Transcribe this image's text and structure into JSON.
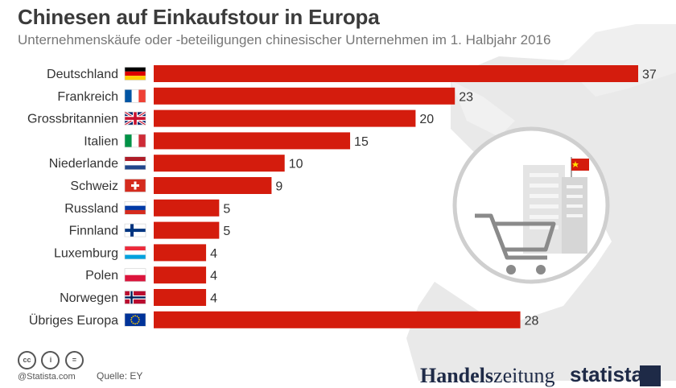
{
  "header": {
    "title": "Chinesen auf Einkaufstour in Europa",
    "subtitle": "Unternehmenskäufe oder -beteiligungen chinesischer Unternehmen im 1. Halbjahr 2016"
  },
  "chart_data": {
    "type": "bar",
    "orientation": "horizontal",
    "categories": [
      "Deutschland",
      "Frankreich",
      "Grossbritannien",
      "Italien",
      "Niederlande",
      "Schweiz",
      "Russland",
      "Finnland",
      "Luxemburg",
      "Polen",
      "Norwegen",
      "Übriges Europa"
    ],
    "values": [
      37,
      23,
      20,
      15,
      10,
      9,
      5,
      5,
      4,
      4,
      4,
      28
    ],
    "flags": [
      "germany-flag-icon",
      "france-flag-icon",
      "uk-flag-icon",
      "italy-flag-icon",
      "netherlands-flag-icon",
      "switzerland-flag-icon",
      "russia-flag-icon",
      "finland-flag-icon",
      "luxembourg-flag-icon",
      "poland-flag-icon",
      "norway-flag-icon",
      "eu-flag-icon"
    ],
    "bar_color": "#d41c0d",
    "data_labels": true,
    "grid": false,
    "xlim": [
      0,
      37
    ]
  },
  "footer": {
    "license_icons": [
      "cc-icon",
      "by-icon",
      "nd-icon"
    ],
    "license_glyphs": [
      "cc",
      "i",
      "="
    ],
    "copyright": "@Statista.com",
    "source": "Quelle: EY",
    "brand_handelszeitung_a": "Handels",
    "brand_handelszeitung_b": "zeitung",
    "brand_statista": "statista"
  },
  "colors": {
    "bar": "#d41c0d",
    "title": "#3b3b3b",
    "subtitle": "#777777",
    "map": "#e6e6e6",
    "brand": "#1e2a47"
  }
}
